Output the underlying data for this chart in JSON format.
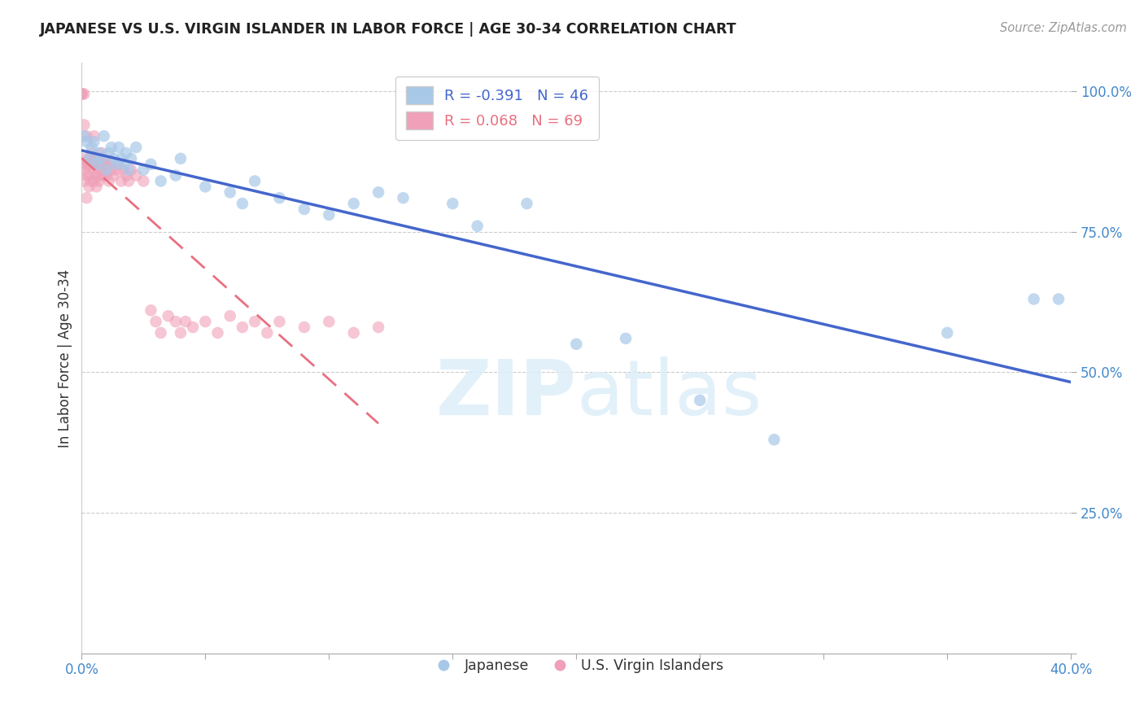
{
  "title": "JAPANESE VS U.S. VIRGIN ISLANDER IN LABOR FORCE | AGE 30-34 CORRELATION CHART",
  "source": "Source: ZipAtlas.com",
  "ylabel": "In Labor Force | Age 30-34",
  "xlim": [
    0.0,
    0.4
  ],
  "ylim": [
    0.0,
    1.05
  ],
  "legend_R_blue": "-0.391",
  "legend_N_blue": "46",
  "legend_R_pink": "0.068",
  "legend_N_pink": "69",
  "blue_color": "#a8c8e8",
  "pink_color": "#f0a0b8",
  "blue_line_color": "#4466cc",
  "pink_line_color": "#e87080",
  "blue_scatter_alpha": 0.7,
  "pink_scatter_alpha": 0.6,
  "marker_size": 110,
  "blue_x": [
    0.001,
    0.002,
    0.003,
    0.004,
    0.005,
    0.006,
    0.007,
    0.008,
    0.009,
    0.01,
    0.011,
    0.012,
    0.013,
    0.014,
    0.015,
    0.016,
    0.017,
    0.018,
    0.019,
    0.02,
    0.022,
    0.025,
    0.028,
    0.032,
    0.038,
    0.04,
    0.05,
    0.06,
    0.065,
    0.07,
    0.08,
    0.09,
    0.1,
    0.11,
    0.12,
    0.13,
    0.15,
    0.16,
    0.18,
    0.2,
    0.22,
    0.25,
    0.28,
    0.35,
    0.385,
    0.395
  ],
  "blue_y": [
    0.92,
    0.91,
    0.88,
    0.9,
    0.91,
    0.87,
    0.89,
    0.88,
    0.92,
    0.86,
    0.89,
    0.9,
    0.88,
    0.87,
    0.9,
    0.88,
    0.87,
    0.89,
    0.86,
    0.88,
    0.9,
    0.86,
    0.87,
    0.84,
    0.85,
    0.88,
    0.83,
    0.82,
    0.8,
    0.84,
    0.81,
    0.79,
    0.78,
    0.8,
    0.82,
    0.81,
    0.8,
    0.76,
    0.8,
    0.55,
    0.56,
    0.45,
    0.38,
    0.57,
    0.63,
    0.63
  ],
  "pink_x": [
    0.0,
    0.0,
    0.0,
    0.0,
    0.001,
    0.001,
    0.001,
    0.001,
    0.001,
    0.002,
    0.002,
    0.002,
    0.002,
    0.003,
    0.003,
    0.003,
    0.003,
    0.004,
    0.004,
    0.004,
    0.005,
    0.005,
    0.005,
    0.005,
    0.006,
    0.006,
    0.006,
    0.007,
    0.007,
    0.007,
    0.008,
    0.008,
    0.008,
    0.009,
    0.009,
    0.01,
    0.01,
    0.011,
    0.011,
    0.012,
    0.013,
    0.014,
    0.015,
    0.016,
    0.017,
    0.018,
    0.019,
    0.02,
    0.022,
    0.025,
    0.028,
    0.03,
    0.032,
    0.035,
    0.038,
    0.04,
    0.042,
    0.045,
    0.05,
    0.055,
    0.06,
    0.065,
    0.07,
    0.075,
    0.08,
    0.09,
    0.1,
    0.11,
    0.12
  ],
  "pink_y": [
    0.995,
    0.995,
    0.995,
    0.88,
    0.995,
    0.94,
    0.87,
    0.86,
    0.84,
    0.92,
    0.87,
    0.85,
    0.81,
    0.88,
    0.87,
    0.85,
    0.83,
    0.89,
    0.87,
    0.84,
    0.92,
    0.88,
    0.86,
    0.84,
    0.87,
    0.85,
    0.83,
    0.88,
    0.86,
    0.84,
    0.89,
    0.87,
    0.85,
    0.87,
    0.85,
    0.87,
    0.85,
    0.87,
    0.84,
    0.86,
    0.85,
    0.86,
    0.87,
    0.84,
    0.86,
    0.85,
    0.84,
    0.86,
    0.85,
    0.84,
    0.61,
    0.59,
    0.57,
    0.6,
    0.59,
    0.57,
    0.59,
    0.58,
    0.59,
    0.57,
    0.6,
    0.58,
    0.59,
    0.57,
    0.59,
    0.58,
    0.59,
    0.57,
    0.58
  ]
}
